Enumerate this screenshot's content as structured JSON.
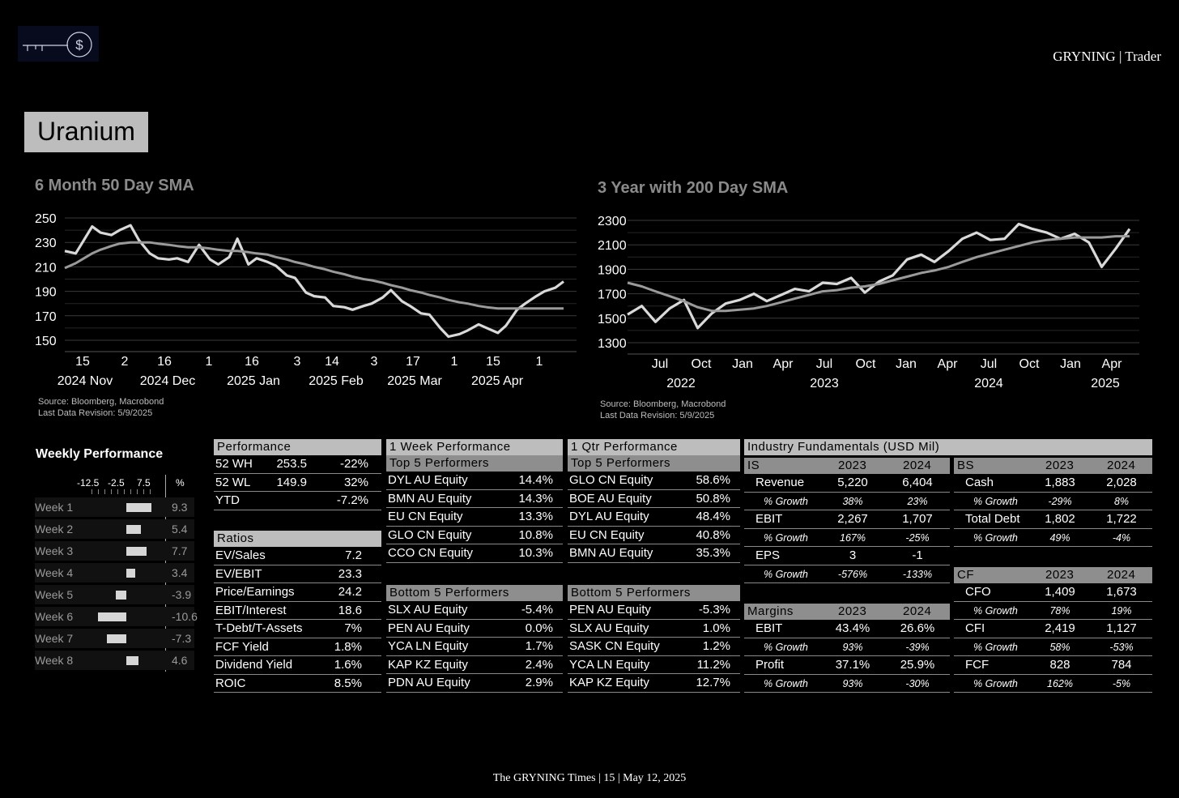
{
  "header": {
    "brand": "GRYNING | Trader",
    "logo_icon": "key-dollar-logo-icon"
  },
  "sector": "Uranium",
  "chart_data": [
    {
      "type": "line",
      "title": "6 Month 50 Day SMA",
      "ylim": [
        150,
        250
      ],
      "yticks": [
        "250",
        "230",
        "210",
        "190",
        "170",
        "150"
      ],
      "xticks_day": [
        "15",
        "2",
        "16",
        "1",
        "16",
        "3",
        "14",
        "3",
        "17",
        "1",
        "15",
        "1"
      ],
      "xticks_month": [
        "2024 Nov",
        "2024 Dec",
        "2025 Jan",
        "2025 Feb",
        "2025 Mar",
        "2025 Apr"
      ],
      "x": [
        "2024-11-08",
        "2024-11-12",
        "2024-11-15",
        "2024-11-18",
        "2024-11-21",
        "2024-11-25",
        "2024-11-28",
        "2024-12-02",
        "2024-12-05",
        "2024-12-09",
        "2024-12-12",
        "2024-12-16",
        "2024-12-19",
        "2024-12-23",
        "2024-12-27",
        "2024-12-31",
        "2025-01-03",
        "2025-01-07",
        "2025-01-10",
        "2025-01-14",
        "2025-01-17",
        "2025-01-21",
        "2025-01-24",
        "2025-01-28",
        "2025-01-31",
        "2025-02-04",
        "2025-02-07",
        "2025-02-11",
        "2025-02-14",
        "2025-02-18",
        "2025-02-21",
        "2025-02-25",
        "2025-02-28",
        "2025-03-04",
        "2025-03-07",
        "2025-03-11",
        "2025-03-14",
        "2025-03-18",
        "2025-03-21",
        "2025-03-25",
        "2025-03-28",
        "2025-04-01",
        "2025-04-04",
        "2025-04-08",
        "2025-04-11",
        "2025-04-15",
        "2025-04-18",
        "2025-04-22",
        "2025-04-25",
        "2025-04-29",
        "2025-05-02",
        "2025-05-06",
        "2025-05-09"
      ],
      "series": [
        {
          "values": [
            223,
            221,
            232,
            243,
            238,
            236,
            240,
            244,
            232,
            221,
            217,
            216,
            217,
            214,
            228,
            216,
            212,
            218,
            233,
            212,
            217,
            214,
            211,
            203,
            201,
            189,
            186,
            185,
            178,
            177,
            175,
            178,
            180,
            185,
            191,
            182,
            178,
            172,
            171,
            160,
            153,
            155,
            158,
            163,
            160,
            156,
            162,
            175,
            180,
            186,
            190,
            193,
            198
          ]
        },
        {
          "values": [
            209,
            213,
            217,
            221,
            224,
            227,
            229,
            230,
            230,
            230,
            229,
            228,
            227,
            226,
            226,
            225,
            224,
            223,
            223,
            222,
            221,
            220,
            218,
            216,
            214,
            212,
            210,
            208,
            206,
            204,
            202,
            200,
            199,
            197,
            195,
            193,
            191,
            189,
            187,
            185,
            183,
            181,
            180,
            178,
            177,
            176,
            176,
            176,
            176,
            176,
            176,
            176,
            176
          ]
        }
      ],
      "source": "Source: Bloomberg, Macrobond",
      "revision": "Last Data Revision: 5/9/2025"
    },
    {
      "type": "line",
      "title": "3 Year with 200 Day SMA",
      "ylim": [
        1300,
        2300
      ],
      "yticks": [
        "2300",
        "2100",
        "1900",
        "1700",
        "1500",
        "1300"
      ],
      "xticks_q": [
        "Jul",
        "Oct",
        "Jan",
        "Apr",
        "Jul",
        "Oct",
        "Jan",
        "Apr",
        "Jul",
        "Oct",
        "Jan",
        "Apr"
      ],
      "xticks_year": [
        "2022",
        "2023",
        "2024",
        "2025"
      ],
      "x": [
        "2022-05",
        "2022-06",
        "2022-07",
        "2022-08",
        "2022-09",
        "2022-10",
        "2022-11",
        "2022-12",
        "2023-01",
        "2023-02",
        "2023-03",
        "2023-04",
        "2023-05",
        "2023-06",
        "2023-07",
        "2023-08",
        "2023-09",
        "2023-10",
        "2023-11",
        "2023-12",
        "2024-01",
        "2024-02",
        "2024-03",
        "2024-04",
        "2024-05",
        "2024-06",
        "2024-07",
        "2024-08",
        "2024-09",
        "2024-10",
        "2024-11",
        "2024-12",
        "2025-01",
        "2025-02",
        "2025-03",
        "2025-04",
        "2025-05"
      ],
      "series": [
        {
          "values": [
            1530,
            1600,
            1470,
            1580,
            1650,
            1420,
            1540,
            1620,
            1650,
            1700,
            1640,
            1690,
            1740,
            1720,
            1790,
            1780,
            1830,
            1710,
            1800,
            1850,
            1980,
            2020,
            1960,
            2050,
            2150,
            2200,
            2140,
            2150,
            2270,
            2230,
            2200,
            2150,
            2190,
            2120,
            1920,
            2070,
            2230
          ]
        },
        {
          "values": [
            1790,
            1760,
            1720,
            1680,
            1640,
            1590,
            1560,
            1560,
            1570,
            1580,
            1600,
            1630,
            1660,
            1690,
            1720,
            1730,
            1750,
            1760,
            1780,
            1810,
            1840,
            1870,
            1890,
            1920,
            1960,
            2000,
            2030,
            2060,
            2090,
            2120,
            2140,
            2150,
            2160,
            2160,
            2160,
            2170,
            2170
          ]
        }
      ],
      "source": "Source: Bloomberg, Macrobond",
      "revision": "Last Data Revision: 5/9/2025"
    },
    {
      "type": "bar",
      "title": "Weekly Performance",
      "axis_ticks": [
        "-12.5",
        "-2.5",
        "7.5"
      ],
      "unit_label": "%",
      "categories": [
        "Week 1",
        "Week 2",
        "Week 3",
        "Week 4",
        "Week 5",
        "Week 6",
        "Week 7",
        "Week 8"
      ],
      "values": [
        9.3,
        5.4,
        7.7,
        3.4,
        -3.9,
        -10.6,
        -7.3,
        4.6
      ],
      "value_labels": [
        "9.3",
        "5.4",
        "7.7",
        "3.4",
        "-3.9",
        "-10.6",
        "-7.3",
        "4.6"
      ]
    }
  ],
  "performance": {
    "header": "Performance",
    "rows": [
      [
        "52 WH",
        "253.5",
        "-22%"
      ],
      [
        "52 WL",
        "149.9",
        "32%"
      ],
      [
        "YTD",
        "",
        "-7.2%"
      ]
    ]
  },
  "ratios": {
    "header": "Ratios",
    "rows": [
      [
        "EV/Sales",
        "7.2"
      ],
      [
        "EV/EBIT",
        "23.3"
      ],
      [
        "Price/Earnings",
        "24.2"
      ],
      [
        "EBIT/Interest",
        "18.6"
      ],
      [
        "T-Debt/T-Assets",
        "7%"
      ],
      [
        "FCF Yield",
        "1.8%"
      ],
      [
        "Dividend Yield",
        "1.6%"
      ],
      [
        "ROIC",
        "8.5%"
      ]
    ]
  },
  "week_perf": {
    "header": "1 Week Performance",
    "top_header": "Top 5 Performers",
    "top": [
      [
        "DYL AU Equity",
        "14.4%"
      ],
      [
        "BMN AU Equity",
        "14.3%"
      ],
      [
        "EU CN Equity",
        "13.3%"
      ],
      [
        "GLO CN Equity",
        "10.8%"
      ],
      [
        "CCO CN Equity",
        "10.3%"
      ]
    ],
    "bottom_header": "Bottom 5 Performers",
    "bottom": [
      [
        "SLX AU Equity",
        "-5.4%"
      ],
      [
        "PEN AU Equity",
        "0.0%"
      ],
      [
        "YCA LN Equity",
        "1.7%"
      ],
      [
        "KAP KZ Equity",
        "2.4%"
      ],
      [
        "PDN AU Equity",
        "2.9%"
      ]
    ]
  },
  "qtr_perf": {
    "header": "1 Qtr Performance",
    "top_header": "Top 5 Performers",
    "top": [
      [
        "GLO CN Equity",
        "58.6%"
      ],
      [
        "BOE AU Equity",
        "50.8%"
      ],
      [
        "DYL AU Equity",
        "48.4%"
      ],
      [
        "EU CN Equity",
        "40.8%"
      ],
      [
        "BMN AU Equity",
        "35.3%"
      ]
    ],
    "bottom_header": "Bottom 5 Performers",
    "bottom": [
      [
        "PEN AU Equity",
        "-5.3%"
      ],
      [
        "SLX AU Equity",
        "1.0%"
      ],
      [
        "SASK CN Equity",
        "1.2%"
      ],
      [
        "YCA LN Equity",
        "11.2%"
      ],
      [
        "KAP KZ Equity",
        "12.7%"
      ]
    ]
  },
  "fundamentals": {
    "header": "Industry Fundamentals (USD Mil)",
    "is": {
      "title": "IS",
      "y1": "2023",
      "y2": "2024",
      "rows": [
        [
          "Revenue",
          "5,220",
          "6,404",
          false
        ],
        [
          "% Growth",
          "38%",
          "23%",
          true
        ],
        [
          "EBIT",
          "2,267",
          "1,707",
          false
        ],
        [
          "% Growth",
          "167%",
          "-25%",
          true
        ],
        [
          "EPS",
          "3",
          "-1",
          false
        ],
        [
          "% Growth",
          "-576%",
          "-133%",
          true
        ]
      ]
    },
    "margins": {
      "title": "Margins",
      "y1": "2023",
      "y2": "2024",
      "rows": [
        [
          "EBIT",
          "43.4%",
          "26.6%",
          false
        ],
        [
          "% Growth",
          "93%",
          "-39%",
          true
        ],
        [
          "Profit",
          "37.1%",
          "25.9%",
          false
        ],
        [
          "% Growth",
          "93%",
          "-30%",
          true
        ]
      ]
    },
    "bs": {
      "title": "BS",
      "y1": "2023",
      "y2": "2024",
      "rows": [
        [
          "Cash",
          "1,883",
          "2,028",
          false
        ],
        [
          "% Growth",
          "-29%",
          "8%",
          true
        ],
        [
          "Total Debt",
          "1,802",
          "1,722",
          false
        ],
        [
          "% Growth",
          "49%",
          "-4%",
          true
        ]
      ]
    },
    "cf": {
      "title": "CF",
      "y1": "2023",
      "y2": "2024",
      "rows": [
        [
          "CFO",
          "1,409",
          "1,673",
          false
        ],
        [
          "% Growth",
          "78%",
          "19%",
          true
        ],
        [
          "CFI",
          "2,419",
          "1,127",
          false
        ],
        [
          "% Growth",
          "58%",
          "-53%",
          true
        ],
        [
          "FCF",
          "828",
          "784",
          false
        ],
        [
          "% Growth",
          "162%",
          "-5%",
          true
        ]
      ]
    }
  },
  "footer": "The GRYNING Times | 15 | May 12, 2025",
  "colors": {
    "background": "#000000",
    "header_bg": "#bdbdbd",
    "subheader_bg": "#8e8e8e",
    "price_line": "#d9d9d9",
    "sma_line": "#9a9a9a",
    "grid": "#3a3a3a"
  }
}
